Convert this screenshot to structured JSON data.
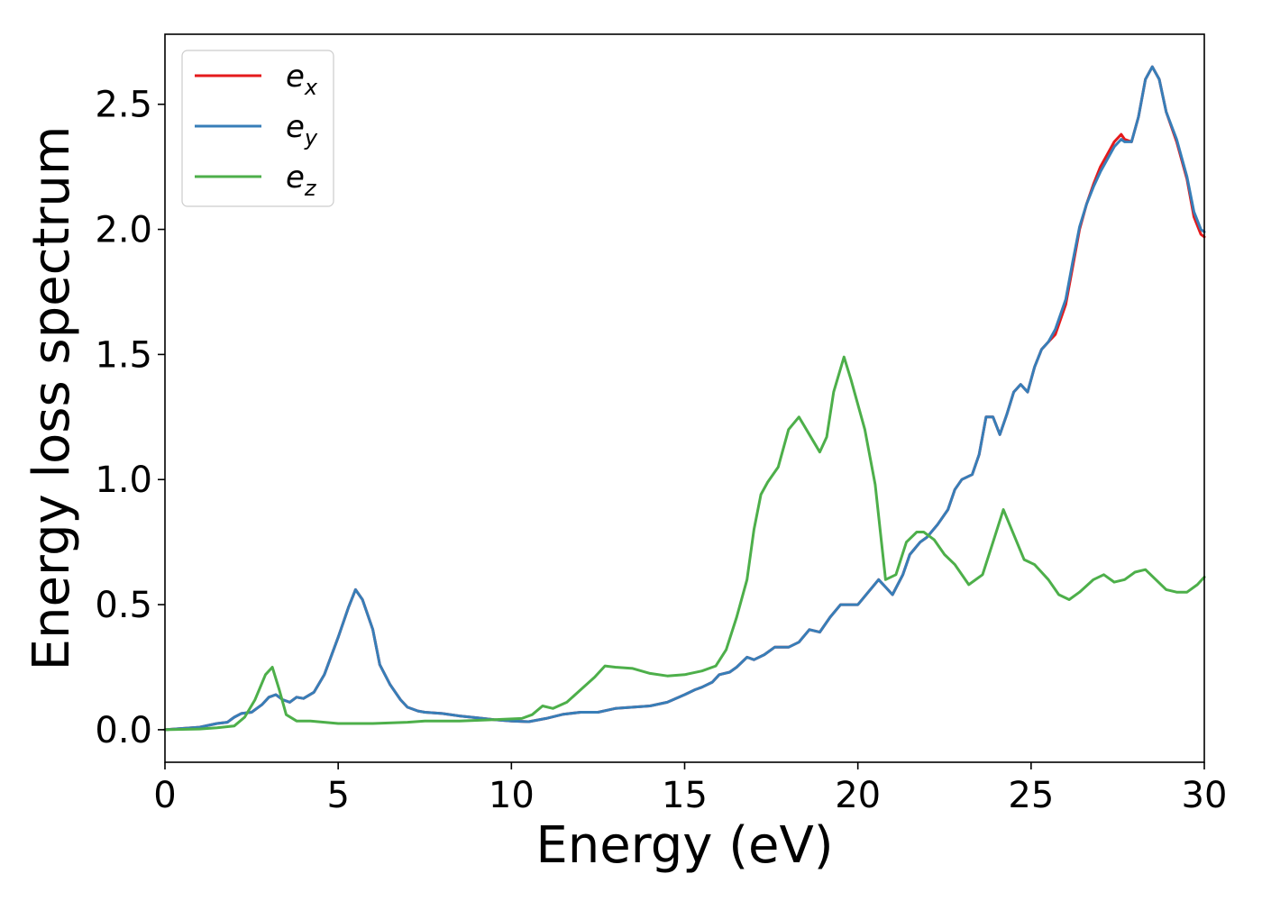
{
  "chart_data": {
    "type": "line",
    "xlabel": "Energy (eV)",
    "ylabel": "Energy loss spectrum",
    "xlim": [
      0,
      30
    ],
    "ylim": [
      -0.13,
      2.78
    ],
    "xticks": [
      "0",
      "5",
      "10",
      "15",
      "20",
      "25",
      "30"
    ],
    "yticks": [
      "0.0",
      "0.5",
      "1.0",
      "1.5",
      "2.0",
      "2.5"
    ],
    "grid": false,
    "legend_position": "top-left",
    "series": [
      {
        "name": "e_x",
        "legend_base": "e",
        "legend_sub": "x",
        "color": "#e41a1c",
        "x": [
          0,
          0.5,
          1,
          1.5,
          1.8,
          2,
          2.2,
          2.5,
          2.8,
          3,
          3.2,
          3.4,
          3.6,
          3.8,
          4,
          4.3,
          4.6,
          5,
          5.3,
          5.5,
          5.7,
          6,
          6.2,
          6.5,
          6.8,
          7,
          7.3,
          7.5,
          8,
          8.5,
          9,
          9.5,
          10,
          10.5,
          11,
          11.5,
          12,
          12.5,
          13,
          13.5,
          14,
          14.5,
          15,
          15.3,
          15.5,
          15.8,
          16,
          16.3,
          16.5,
          16.8,
          17,
          17.3,
          17.6,
          18,
          18.3,
          18.6,
          18.9,
          19.2,
          19.5,
          19.8,
          20,
          20.3,
          20.6,
          20.8,
          21,
          21.3,
          21.5,
          21.8,
          22,
          22.3,
          22.6,
          22.8,
          23,
          23.3,
          23.5,
          23.7,
          23.9,
          24.1,
          24.3,
          24.5,
          24.7,
          24.9,
          25.1,
          25.3,
          25.5,
          25.7,
          26,
          26.2,
          26.4,
          26.6,
          26.8,
          27,
          27.2,
          27.4,
          27.6,
          27.7,
          27.9,
          28.1,
          28.3,
          28.5,
          28.7,
          28.9,
          29.2,
          29.5,
          29.7,
          29.9,
          30
        ],
        "y": [
          0,
          0.005,
          0.01,
          0.025,
          0.03,
          0.05,
          0.065,
          0.07,
          0.1,
          0.13,
          0.14,
          0.12,
          0.11,
          0.13,
          0.125,
          0.15,
          0.22,
          0.37,
          0.49,
          0.56,
          0.52,
          0.4,
          0.26,
          0.18,
          0.12,
          0.09,
          0.075,
          0.07,
          0.065,
          0.055,
          0.048,
          0.04,
          0.035,
          0.032,
          0.045,
          0.062,
          0.07,
          0.07,
          0.085,
          0.09,
          0.095,
          0.11,
          0.14,
          0.16,
          0.17,
          0.19,
          0.22,
          0.23,
          0.25,
          0.29,
          0.28,
          0.3,
          0.33,
          0.33,
          0.35,
          0.4,
          0.39,
          0.45,
          0.5,
          0.5,
          0.5,
          0.55,
          0.6,
          0.57,
          0.54,
          0.62,
          0.7,
          0.75,
          0.77,
          0.82,
          0.88,
          0.96,
          1.0,
          1.02,
          1.1,
          1.25,
          1.25,
          1.18,
          1.26,
          1.35,
          1.38,
          1.35,
          1.45,
          1.52,
          1.55,
          1.58,
          1.7,
          1.85,
          2.0,
          2.1,
          2.18,
          2.25,
          2.3,
          2.35,
          2.38,
          2.36,
          2.35,
          2.45,
          2.6,
          2.65,
          2.6,
          2.47,
          2.35,
          2.2,
          2.05,
          1.98,
          1.97
        ]
      },
      {
        "name": "e_y",
        "legend_base": "e",
        "legend_sub": "y",
        "color": "#377eb8",
        "x": [
          0,
          0.5,
          1,
          1.5,
          1.8,
          2,
          2.2,
          2.5,
          2.8,
          3,
          3.2,
          3.4,
          3.6,
          3.8,
          4,
          4.3,
          4.6,
          5,
          5.3,
          5.5,
          5.7,
          6,
          6.2,
          6.5,
          6.8,
          7,
          7.3,
          7.5,
          8,
          8.5,
          9,
          9.5,
          10,
          10.5,
          11,
          11.5,
          12,
          12.5,
          13,
          13.5,
          14,
          14.5,
          15,
          15.3,
          15.5,
          15.8,
          16,
          16.3,
          16.5,
          16.8,
          17,
          17.3,
          17.6,
          18,
          18.3,
          18.6,
          18.9,
          19.2,
          19.5,
          19.8,
          20,
          20.3,
          20.6,
          20.8,
          21,
          21.3,
          21.5,
          21.8,
          22,
          22.3,
          22.6,
          22.8,
          23,
          23.3,
          23.5,
          23.7,
          23.9,
          24.1,
          24.3,
          24.5,
          24.7,
          24.9,
          25.1,
          25.3,
          25.5,
          25.7,
          26,
          26.2,
          26.4,
          26.6,
          26.8,
          27,
          27.2,
          27.4,
          27.6,
          27.7,
          27.9,
          28.1,
          28.3,
          28.5,
          28.7,
          28.9,
          29.2,
          29.5,
          29.7,
          29.9,
          30
        ],
        "y": [
          0,
          0.005,
          0.01,
          0.025,
          0.03,
          0.05,
          0.065,
          0.07,
          0.1,
          0.13,
          0.14,
          0.12,
          0.11,
          0.13,
          0.125,
          0.15,
          0.22,
          0.37,
          0.49,
          0.56,
          0.52,
          0.4,
          0.26,
          0.18,
          0.12,
          0.09,
          0.075,
          0.07,
          0.065,
          0.055,
          0.048,
          0.04,
          0.035,
          0.032,
          0.045,
          0.062,
          0.07,
          0.07,
          0.085,
          0.09,
          0.095,
          0.11,
          0.14,
          0.16,
          0.17,
          0.19,
          0.22,
          0.23,
          0.25,
          0.29,
          0.28,
          0.3,
          0.33,
          0.33,
          0.35,
          0.4,
          0.39,
          0.45,
          0.5,
          0.5,
          0.5,
          0.55,
          0.6,
          0.57,
          0.54,
          0.62,
          0.7,
          0.75,
          0.77,
          0.82,
          0.88,
          0.96,
          1.0,
          1.02,
          1.1,
          1.25,
          1.25,
          1.18,
          1.26,
          1.35,
          1.38,
          1.35,
          1.45,
          1.52,
          1.55,
          1.6,
          1.72,
          1.87,
          2.01,
          2.1,
          2.17,
          2.23,
          2.28,
          2.33,
          2.36,
          2.35,
          2.35,
          2.45,
          2.6,
          2.65,
          2.6,
          2.47,
          2.36,
          2.21,
          2.07,
          2.0,
          1.99
        ]
      },
      {
        "name": "e_z",
        "legend_base": "e",
        "legend_sub": "z",
        "color": "#4daf4a",
        "x": [
          0,
          1,
          1.5,
          2,
          2.3,
          2.6,
          2.9,
          3.1,
          3.3,
          3.5,
          3.8,
          4.2,
          5,
          6,
          7,
          7.5,
          8.5,
          9.5,
          10.3,
          10.6,
          10.9,
          11.2,
          11.6,
          12,
          12.4,
          12.7,
          13,
          13.5,
          14,
          14.5,
          15,
          15.5,
          15.9,
          16.2,
          16.5,
          16.8,
          17,
          17.2,
          17.4,
          17.7,
          18,
          18.3,
          18.6,
          18.9,
          19.1,
          19.3,
          19.6,
          19.8,
          20.2,
          20.5,
          20.8,
          21.1,
          21.4,
          21.7,
          21.9,
          22.2,
          22.5,
          22.8,
          23.2,
          23.6,
          23.9,
          24.2,
          24.5,
          24.8,
          25.1,
          25.5,
          25.8,
          26.1,
          26.4,
          26.8,
          27.1,
          27.4,
          27.7,
          28,
          28.3,
          28.6,
          28.9,
          29.2,
          29.5,
          29.8,
          30
        ],
        "y": [
          0,
          0.003,
          0.008,
          0.015,
          0.05,
          0.12,
          0.22,
          0.25,
          0.16,
          0.06,
          0.035,
          0.035,
          0.025,
          0.025,
          0.03,
          0.035,
          0.035,
          0.04,
          0.045,
          0.06,
          0.095,
          0.085,
          0.11,
          0.16,
          0.21,
          0.255,
          0.25,
          0.245,
          0.225,
          0.215,
          0.22,
          0.235,
          0.255,
          0.32,
          0.45,
          0.6,
          0.8,
          0.94,
          0.99,
          1.05,
          1.2,
          1.25,
          1.18,
          1.11,
          1.17,
          1.35,
          1.49,
          1.4,
          1.2,
          0.98,
          0.6,
          0.62,
          0.75,
          0.79,
          0.79,
          0.76,
          0.7,
          0.66,
          0.58,
          0.62,
          0.75,
          0.88,
          0.78,
          0.68,
          0.66,
          0.6,
          0.54,
          0.52,
          0.55,
          0.6,
          0.62,
          0.59,
          0.6,
          0.63,
          0.64,
          0.6,
          0.56,
          0.55,
          0.55,
          0.58,
          0.61
        ]
      }
    ]
  }
}
